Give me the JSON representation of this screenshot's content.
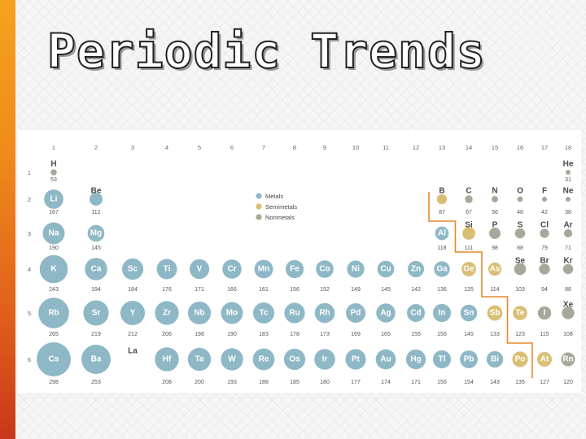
{
  "title": "Periodic Trends",
  "colors": {
    "metal": "#8fb8c6",
    "semimetal": "#d9bf74",
    "nonmetal": "#a7a899",
    "boundary": "#e8892c",
    "accent": "#f08a1c"
  },
  "legend": [
    {
      "label": "Metals",
      "cat": "metal"
    },
    {
      "label": "Semimetals",
      "cat": "semimetal"
    },
    {
      "label": "Nonmetals",
      "cat": "nonmetal"
    }
  ],
  "groups": [
    "1",
    "2",
    "3",
    "4",
    "5",
    "6",
    "7",
    "8",
    "9",
    "10",
    "11",
    "12",
    "13",
    "14",
    "15",
    "16",
    "17",
    "18"
  ],
  "periods": [
    "1",
    "2",
    "3",
    "4",
    "5",
    "6"
  ],
  "elements": [
    {
      "sym": "H",
      "group": 1,
      "period": 1,
      "radius": "53",
      "cat": "nonmetal"
    },
    {
      "sym": "He",
      "group": 18,
      "period": 1,
      "radius": "31",
      "cat": "nonmetal"
    },
    {
      "sym": "Li",
      "group": 1,
      "period": 2,
      "radius": "167",
      "cat": "metal"
    },
    {
      "sym": "Be",
      "group": 2,
      "period": 2,
      "radius": "112",
      "cat": "metal"
    },
    {
      "sym": "B",
      "group": 13,
      "period": 2,
      "radius": "87",
      "cat": "semimetal"
    },
    {
      "sym": "C",
      "group": 14,
      "period": 2,
      "radius": "67",
      "cat": "nonmetal"
    },
    {
      "sym": "N",
      "group": 15,
      "period": 2,
      "radius": "56",
      "cat": "nonmetal"
    },
    {
      "sym": "O",
      "group": 16,
      "period": 2,
      "radius": "48",
      "cat": "nonmetal"
    },
    {
      "sym": "F",
      "group": 17,
      "period": 2,
      "radius": "42",
      "cat": "nonmetal"
    },
    {
      "sym": "Ne",
      "group": 18,
      "period": 2,
      "radius": "38",
      "cat": "nonmetal"
    },
    {
      "sym": "Na",
      "group": 1,
      "period": 3,
      "radius": "190",
      "cat": "metal"
    },
    {
      "sym": "Mg",
      "group": 2,
      "period": 3,
      "radius": "145",
      "cat": "metal"
    },
    {
      "sym": "Al",
      "group": 13,
      "period": 3,
      "radius": "118",
      "cat": "metal"
    },
    {
      "sym": "Si",
      "group": 14,
      "period": 3,
      "radius": "111",
      "cat": "semimetal"
    },
    {
      "sym": "P",
      "group": 15,
      "period": 3,
      "radius": "98",
      "cat": "nonmetal"
    },
    {
      "sym": "S",
      "group": 16,
      "period": 3,
      "radius": "88",
      "cat": "nonmetal"
    },
    {
      "sym": "Cl",
      "group": 17,
      "period": 3,
      "radius": "79",
      "cat": "nonmetal"
    },
    {
      "sym": "Ar",
      "group": 18,
      "period": 3,
      "radius": "71",
      "cat": "nonmetal"
    },
    {
      "sym": "K",
      "group": 1,
      "period": 4,
      "radius": "243",
      "cat": "metal"
    },
    {
      "sym": "Ca",
      "group": 2,
      "period": 4,
      "radius": "194",
      "cat": "metal"
    },
    {
      "sym": "Sc",
      "group": 3,
      "period": 4,
      "radius": "184",
      "cat": "metal"
    },
    {
      "sym": "Ti",
      "group": 4,
      "period": 4,
      "radius": "176",
      "cat": "metal"
    },
    {
      "sym": "V",
      "group": 5,
      "period": 4,
      "radius": "171",
      "cat": "metal"
    },
    {
      "sym": "Cr",
      "group": 6,
      "period": 4,
      "radius": "166",
      "cat": "metal"
    },
    {
      "sym": "Mn",
      "group": 7,
      "period": 4,
      "radius": "161",
      "cat": "metal"
    },
    {
      "sym": "Fe",
      "group": 8,
      "period": 4,
      "radius": "156",
      "cat": "metal"
    },
    {
      "sym": "Co",
      "group": 9,
      "period": 4,
      "radius": "152",
      "cat": "metal"
    },
    {
      "sym": "Ni",
      "group": 10,
      "period": 4,
      "radius": "149",
      "cat": "metal"
    },
    {
      "sym": "Cu",
      "group": 11,
      "period": 4,
      "radius": "145",
      "cat": "metal"
    },
    {
      "sym": "Zn",
      "group": 12,
      "period": 4,
      "radius": "142",
      "cat": "metal"
    },
    {
      "sym": "Ga",
      "group": 13,
      "period": 4,
      "radius": "136",
      "cat": "metal"
    },
    {
      "sym": "Ge",
      "group": 14,
      "period": 4,
      "radius": "125",
      "cat": "semimetal"
    },
    {
      "sym": "As",
      "group": 15,
      "period": 4,
      "radius": "114",
      "cat": "semimetal"
    },
    {
      "sym": "Se",
      "group": 16,
      "period": 4,
      "radius": "103",
      "cat": "nonmetal"
    },
    {
      "sym": "Br",
      "group": 17,
      "period": 4,
      "radius": "94",
      "cat": "nonmetal"
    },
    {
      "sym": "Kr",
      "group": 18,
      "period": 4,
      "radius": "88",
      "cat": "nonmetal"
    },
    {
      "sym": "Rb",
      "group": 1,
      "period": 5,
      "radius": "265",
      "cat": "metal"
    },
    {
      "sym": "Sr",
      "group": 2,
      "period": 5,
      "radius": "219",
      "cat": "metal"
    },
    {
      "sym": "Y",
      "group": 3,
      "period": 5,
      "radius": "212",
      "cat": "metal"
    },
    {
      "sym": "Zr",
      "group": 4,
      "period": 5,
      "radius": "206",
      "cat": "metal"
    },
    {
      "sym": "Nb",
      "group": 5,
      "period": 5,
      "radius": "198",
      "cat": "metal"
    },
    {
      "sym": "Mo",
      "group": 6,
      "period": 5,
      "radius": "190",
      "cat": "metal"
    },
    {
      "sym": "Tc",
      "group": 7,
      "period": 5,
      "radius": "183",
      "cat": "metal"
    },
    {
      "sym": "Ru",
      "group": 8,
      "period": 5,
      "radius": "178",
      "cat": "metal"
    },
    {
      "sym": "Rh",
      "group": 9,
      "period": 5,
      "radius": "173",
      "cat": "metal"
    },
    {
      "sym": "Pd",
      "group": 10,
      "period": 5,
      "radius": "169",
      "cat": "metal"
    },
    {
      "sym": "Ag",
      "group": 11,
      "period": 5,
      "radius": "165",
      "cat": "metal"
    },
    {
      "sym": "Cd",
      "group": 12,
      "period": 5,
      "radius": "155",
      "cat": "metal"
    },
    {
      "sym": "In",
      "group": 13,
      "period": 5,
      "radius": "156",
      "cat": "metal"
    },
    {
      "sym": "Sn",
      "group": 14,
      "period": 5,
      "radius": "145",
      "cat": "metal"
    },
    {
      "sym": "Sb",
      "group": 15,
      "period": 5,
      "radius": "133",
      "cat": "semimetal"
    },
    {
      "sym": "Te",
      "group": 16,
      "period": 5,
      "radius": "123",
      "cat": "semimetal"
    },
    {
      "sym": "I",
      "group": 17,
      "period": 5,
      "radius": "115",
      "cat": "nonmetal"
    },
    {
      "sym": "Xe",
      "group": 18,
      "period": 5,
      "radius": "108",
      "cat": "nonmetal"
    },
    {
      "sym": "Cs",
      "group": 1,
      "period": 6,
      "radius": "298",
      "cat": "metal"
    },
    {
      "sym": "Ba",
      "group": 2,
      "period": 6,
      "radius": "253",
      "cat": "metal"
    },
    {
      "sym": "La",
      "group": 3,
      "period": 6,
      "radius": "",
      "cat": "none"
    },
    {
      "sym": "Hf",
      "group": 4,
      "period": 6,
      "radius": "208",
      "cat": "metal"
    },
    {
      "sym": "Ta",
      "group": 5,
      "period": 6,
      "radius": "200",
      "cat": "metal"
    },
    {
      "sym": "W",
      "group": 6,
      "period": 6,
      "radius": "193",
      "cat": "metal"
    },
    {
      "sym": "Re",
      "group": 7,
      "period": 6,
      "radius": "188",
      "cat": "metal"
    },
    {
      "sym": "Os",
      "group": 8,
      "period": 6,
      "radius": "185",
      "cat": "metal"
    },
    {
      "sym": "Ir",
      "group": 9,
      "period": 6,
      "radius": "180",
      "cat": "metal"
    },
    {
      "sym": "Pt",
      "group": 10,
      "period": 6,
      "radius": "177",
      "cat": "metal"
    },
    {
      "sym": "Au",
      "group": 11,
      "period": 6,
      "radius": "174",
      "cat": "metal"
    },
    {
      "sym": "Hg",
      "group": 12,
      "period": 6,
      "radius": "171",
      "cat": "metal"
    },
    {
      "sym": "Tl",
      "group": 13,
      "period": 6,
      "radius": "156",
      "cat": "metal"
    },
    {
      "sym": "Pb",
      "group": 14,
      "period": 6,
      "radius": "154",
      "cat": "metal"
    },
    {
      "sym": "Bi",
      "group": 15,
      "period": 6,
      "radius": "143",
      "cat": "metal"
    },
    {
      "sym": "Po",
      "group": 16,
      "period": 6,
      "radius": "135",
      "cat": "semimetal"
    },
    {
      "sym": "At",
      "group": 17,
      "period": 6,
      "radius": "127",
      "cat": "semimetal"
    },
    {
      "sym": "Rn",
      "group": 18,
      "period": 6,
      "radius": "120",
      "cat": "nonmetal"
    }
  ]
}
